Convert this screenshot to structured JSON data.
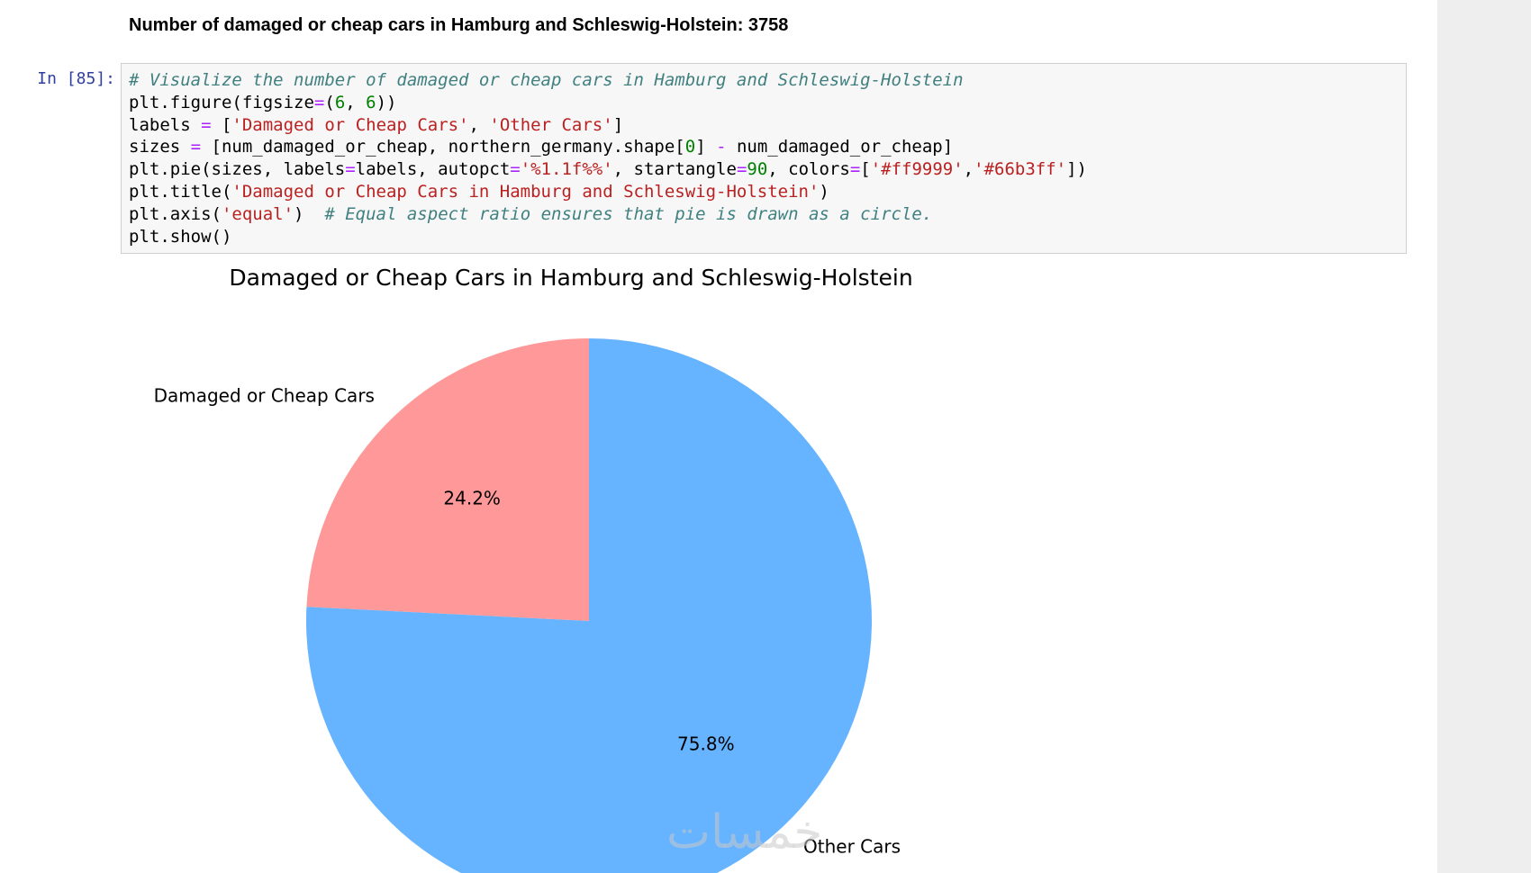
{
  "output": {
    "text": "Number of damaged or cheap cars in Hamburg and Schleswig-Holstein: 3758"
  },
  "cell": {
    "prompt": "In [85]:",
    "code_lines": [
      [
        {
          "t": "# Visualize the number of damaged or cheap cars in Hamburg and Schleswig-Holstein",
          "c": "cm"
        }
      ],
      [
        {
          "t": "plt.figure(figsize"
        },
        {
          "t": "=",
          "c": "op"
        },
        {
          "t": "("
        },
        {
          "t": "6",
          "c": "nu"
        },
        {
          "t": ", "
        },
        {
          "t": "6",
          "c": "nu"
        },
        {
          "t": "))"
        }
      ],
      [
        {
          "t": "labels "
        },
        {
          "t": "=",
          "c": "op"
        },
        {
          "t": " ["
        },
        {
          "t": "'Damaged or Cheap Cars'",
          "c": "st"
        },
        {
          "t": ", "
        },
        {
          "t": "'Other Cars'",
          "c": "st"
        },
        {
          "t": "]"
        }
      ],
      [
        {
          "t": "sizes "
        },
        {
          "t": "=",
          "c": "op"
        },
        {
          "t": " [num_damaged_or_cheap, northern_germany.shape["
        },
        {
          "t": "0",
          "c": "nu"
        },
        {
          "t": "] "
        },
        {
          "t": "-",
          "c": "op"
        },
        {
          "t": " num_damaged_or_cheap]"
        }
      ],
      [
        {
          "t": "plt.pie(sizes, labels"
        },
        {
          "t": "=",
          "c": "op"
        },
        {
          "t": "labels, autopct"
        },
        {
          "t": "=",
          "c": "op"
        },
        {
          "t": "'%1.1f%%'",
          "c": "st"
        },
        {
          "t": ", startangle"
        },
        {
          "t": "=",
          "c": "op"
        },
        {
          "t": "90",
          "c": "nu"
        },
        {
          "t": ", colors"
        },
        {
          "t": "=",
          "c": "op"
        },
        {
          "t": "["
        },
        {
          "t": "'#ff9999'",
          "c": "st"
        },
        {
          "t": ","
        },
        {
          "t": "'#66b3ff'",
          "c": "st"
        },
        {
          "t": "])"
        }
      ],
      [
        {
          "t": "plt.title("
        },
        {
          "t": "'Damaged or Cheap Cars in Hamburg and Schleswig-Holstein'",
          "c": "st"
        },
        {
          "t": ")"
        }
      ],
      [
        {
          "t": "plt.axis("
        },
        {
          "t": "'equal'",
          "c": "st"
        },
        {
          "t": ")  "
        },
        {
          "t": "# Equal aspect ratio ensures that pie is drawn as a circle.",
          "c": "cm"
        }
      ],
      [
        {
          "t": "plt.show()"
        }
      ]
    ]
  },
  "chart_data": {
    "type": "pie",
    "title": "Damaged or Cheap Cars in Hamburg and Schleswig-Holstein",
    "labels": [
      "Damaged or Cheap Cars",
      "Other Cars"
    ],
    "values": [
      24.2,
      75.8
    ],
    "pct_labels": [
      "24.2%",
      "75.8%"
    ],
    "colors": [
      "#ff9999",
      "#66b3ff"
    ],
    "start_angle": 90
  },
  "watermark": "خمسات"
}
